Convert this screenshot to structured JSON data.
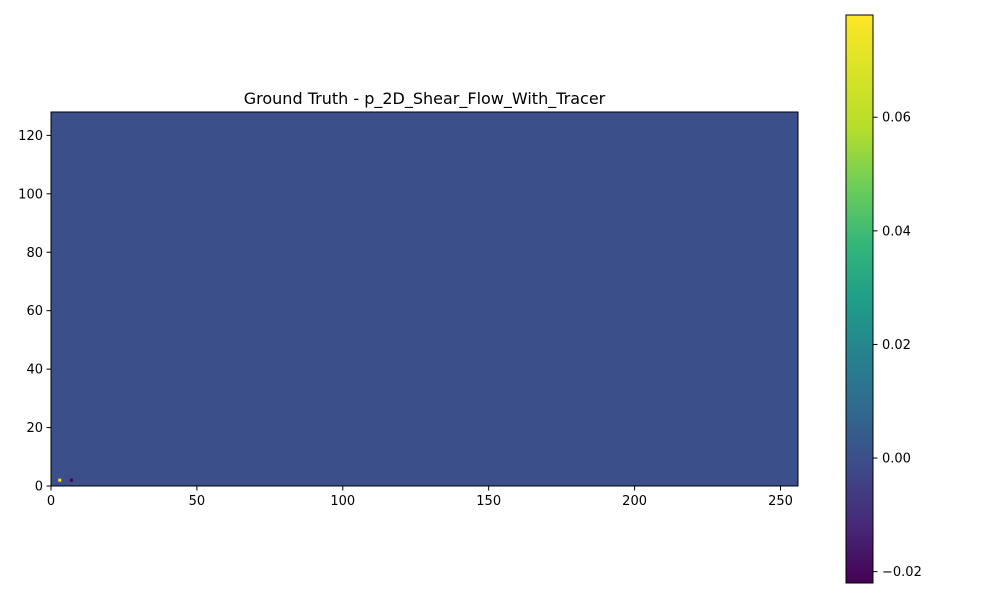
{
  "chart_data": {
    "type": "heatmap",
    "title": "Ground Truth - p_2D_Shear_Flow_With_Tracer",
    "xlabel": "",
    "ylabel": "",
    "xlim": [
      0,
      256
    ],
    "ylim": [
      0,
      128
    ],
    "x_ticks": [
      {
        "value": 0,
        "label": "0"
      },
      {
        "value": 50,
        "label": "50"
      },
      {
        "value": 100,
        "label": "100"
      },
      {
        "value": 150,
        "label": "150"
      },
      {
        "value": 200,
        "label": "200"
      },
      {
        "value": 250,
        "label": "250"
      }
    ],
    "y_ticks": [
      {
        "value": 0,
        "label": "0"
      },
      {
        "value": 20,
        "label": "20"
      },
      {
        "value": 40,
        "label": "40"
      },
      {
        "value": 60,
        "label": "60"
      },
      {
        "value": 80,
        "label": "80"
      },
      {
        "value": 100,
        "label": "100"
      },
      {
        "value": 120,
        "label": "120"
      }
    ],
    "background_value": 0.0,
    "points": [
      {
        "x": 3,
        "y": 2,
        "value": 0.078
      },
      {
        "x": 7,
        "y": 2,
        "value": -0.022
      }
    ],
    "colorbar": {
      "colormap": "viridis",
      "vmin": -0.022,
      "vmax": 0.078,
      "ticks": [
        {
          "value": -0.02,
          "label": "−0.02"
        },
        {
          "value": 0.0,
          "label": "0.00"
        },
        {
          "value": 0.02,
          "label": "0.02"
        },
        {
          "value": 0.04,
          "label": "0.04"
        },
        {
          "value": 0.06,
          "label": "0.06"
        }
      ]
    },
    "grid": false
  }
}
